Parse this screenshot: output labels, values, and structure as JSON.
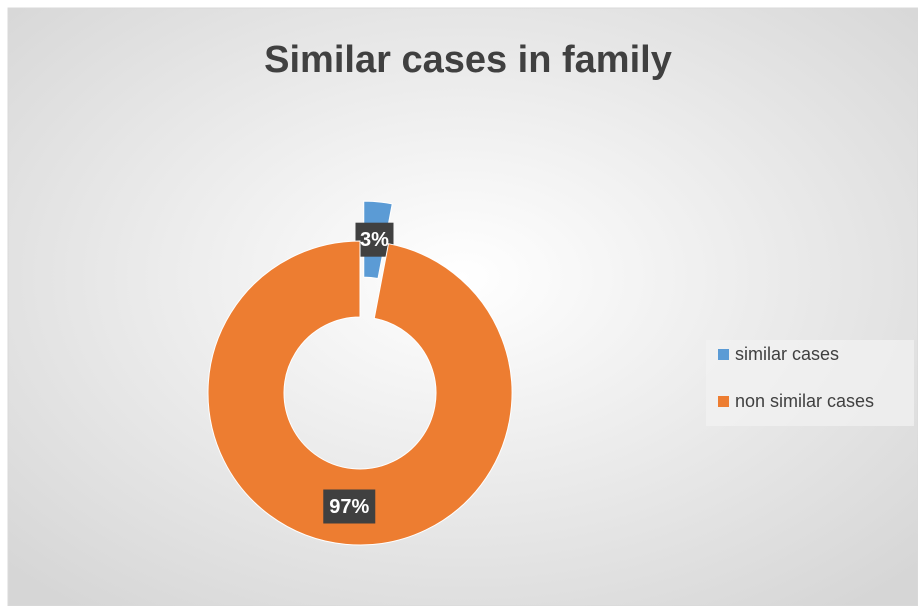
{
  "chart_data": {
    "type": "doughnut",
    "title": "Similar cases in family",
    "categories": [
      "similar cases",
      "non similar cases"
    ],
    "values": [
      3,
      97
    ],
    "value_labels": [
      "3%",
      "97%"
    ],
    "colors": [
      "#5b9bd5",
      "#ed7d31"
    ],
    "legend": "right"
  }
}
